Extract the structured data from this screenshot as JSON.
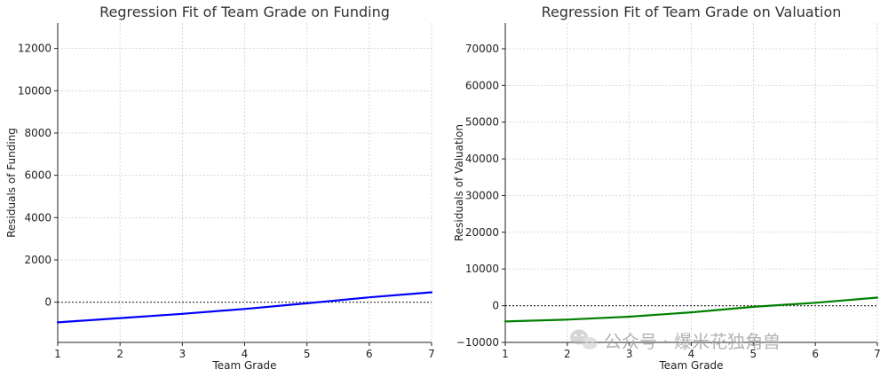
{
  "watermark": {
    "text": "公众号 · 爆米花独角兽",
    "icon": "wechat-icon"
  },
  "colors": {
    "funding": "#0000ff",
    "valuation": "#008000",
    "grid": "#cccccc",
    "zero": "#333333"
  },
  "chart_data": [
    {
      "type": "line",
      "title": "Regression Fit of Team Grade on Funding",
      "xlabel": "Team Grade",
      "ylabel": "Residuals of Funding",
      "xlim": [
        1,
        7
      ],
      "ylim": [
        -1900,
        13200
      ],
      "xticks": [
        1,
        2,
        3,
        4,
        5,
        6,
        7
      ],
      "yticks": [
        0,
        2000,
        4000,
        6000,
        8000,
        10000,
        12000
      ],
      "grid": true,
      "reference_line": {
        "y": 0,
        "style": "dotted"
      },
      "series": [
        {
          "color": "#0000ff",
          "x": [
            1,
            2,
            3,
            4,
            5,
            6,
            7
          ],
          "y": [
            -950,
            -750,
            -550,
            -320,
            -50,
            230,
            470
          ]
        }
      ]
    },
    {
      "type": "line",
      "title": "Regression Fit of Team Grade on Valuation",
      "xlabel": "Team Grade",
      "ylabel": "Residuals of Valuation",
      "xlim": [
        1,
        7
      ],
      "ylim": [
        -10000,
        77000
      ],
      "xticks": [
        1,
        2,
        3,
        4,
        5,
        6,
        7
      ],
      "yticks": [
        -10000,
        0,
        10000,
        20000,
        30000,
        40000,
        50000,
        60000,
        70000
      ],
      "grid": true,
      "reference_line": {
        "y": 0,
        "style": "dotted"
      },
      "series": [
        {
          "color": "#008000",
          "x": [
            1,
            2,
            3,
            4,
            5,
            6,
            7
          ],
          "y": [
            -4300,
            -3800,
            -3000,
            -1800,
            -300,
            800,
            2200
          ]
        }
      ]
    }
  ]
}
